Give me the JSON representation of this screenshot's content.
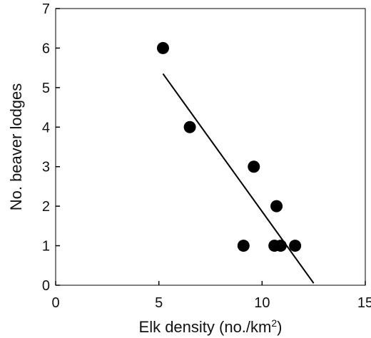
{
  "chart_data": {
    "type": "scatter",
    "title": "",
    "xlabel_main": "Elk density (no./km",
    "xlabel_sup": "2",
    "xlabel_tail": ")",
    "ylabel": "No. beaver lodges",
    "xlim": [
      0,
      15
    ],
    "ylim": [
      0,
      7
    ],
    "xticks": [
      0,
      5,
      10,
      15
    ],
    "yticks": [
      0,
      1,
      2,
      3,
      4,
      5,
      6,
      7
    ],
    "grid": false,
    "points": [
      {
        "x": 5.2,
        "y": 6
      },
      {
        "x": 6.5,
        "y": 4
      },
      {
        "x": 9.6,
        "y": 3
      },
      {
        "x": 10.7,
        "y": 2
      },
      {
        "x": 9.1,
        "y": 1
      },
      {
        "x": 10.6,
        "y": 1
      },
      {
        "x": 10.9,
        "y": 1
      },
      {
        "x": 11.6,
        "y": 1
      }
    ],
    "trendline": {
      "x": [
        5.2,
        12.5
      ],
      "y": [
        5.35,
        0.05
      ]
    },
    "colors": {
      "points": "#000000",
      "line": "#000000",
      "axis": "#000000"
    }
  }
}
